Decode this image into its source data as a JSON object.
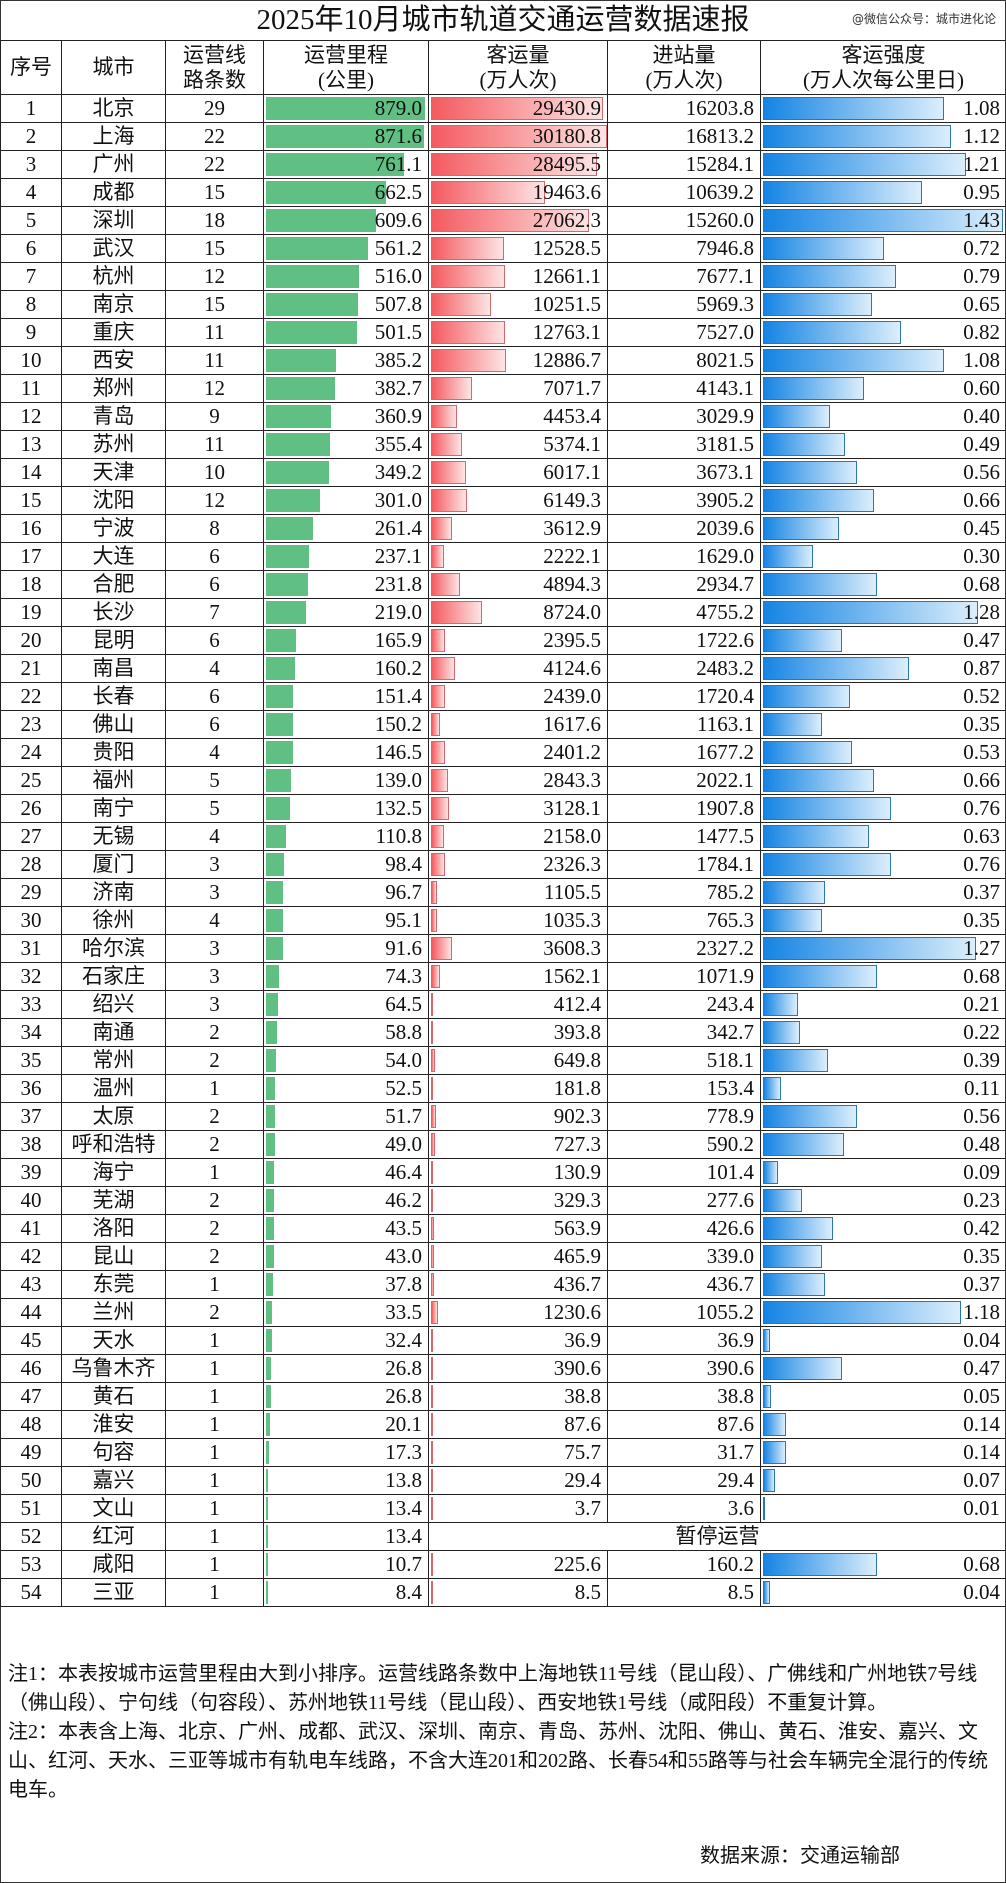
{
  "title": "2025年10月城市轨道交通运营数据速报",
  "watermark": "@微信公众号：城市进化论",
  "headers": [
    "序号",
    "城市",
    "运营线\n路条数",
    "运营里程\n(公里)",
    "客运量\n(万人次)",
    "进站量\n(万人次)",
    "客运强度\n(万人次每公里日)"
  ],
  "colors": {
    "mileage_bar": "#60bf82",
    "ridership_bar": "#f45a5f",
    "intensity_bar": "#1584e3"
  },
  "suspended_label": "暂停运营",
  "rows": [
    [
      "1",
      "北京",
      "29",
      "879.0",
      "29430.9",
      "16203.8",
      "1.08"
    ],
    [
      "2",
      "上海",
      "22",
      "871.6",
      "30180.8",
      "16813.2",
      "1.12"
    ],
    [
      "3",
      "广州",
      "22",
      "761.1",
      "28495.5",
      "15284.1",
      "1.21"
    ],
    [
      "4",
      "成都",
      "15",
      "662.5",
      "19463.6",
      "10639.2",
      "0.95"
    ],
    [
      "5",
      "深圳",
      "18",
      "609.6",
      "27062.3",
      "15260.0",
      "1.43"
    ],
    [
      "6",
      "武汉",
      "15",
      "561.2",
      "12528.5",
      "7946.8",
      "0.72"
    ],
    [
      "7",
      "杭州",
      "12",
      "516.0",
      "12661.1",
      "7677.1",
      "0.79"
    ],
    [
      "8",
      "南京",
      "15",
      "507.8",
      "10251.5",
      "5969.3",
      "0.65"
    ],
    [
      "9",
      "重庆",
      "11",
      "501.5",
      "12763.1",
      "7527.0",
      "0.82"
    ],
    [
      "10",
      "西安",
      "11",
      "385.2",
      "12886.7",
      "8021.5",
      "1.08"
    ],
    [
      "11",
      "郑州",
      "12",
      "382.7",
      "7071.7",
      "4143.1",
      "0.60"
    ],
    [
      "12",
      "青岛",
      "9",
      "360.9",
      "4453.4",
      "3029.9",
      "0.40"
    ],
    [
      "13",
      "苏州",
      "11",
      "355.4",
      "5374.1",
      "3181.5",
      "0.49"
    ],
    [
      "14",
      "天津",
      "10",
      "349.2",
      "6017.1",
      "3673.1",
      "0.56"
    ],
    [
      "15",
      "沈阳",
      "12",
      "301.0",
      "6149.3",
      "3905.2",
      "0.66"
    ],
    [
      "16",
      "宁波",
      "8",
      "261.4",
      "3612.9",
      "2039.6",
      "0.45"
    ],
    [
      "17",
      "大连",
      "6",
      "237.1",
      "2222.1",
      "1629.0",
      "0.30"
    ],
    [
      "18",
      "合肥",
      "6",
      "231.8",
      "4894.3",
      "2934.7",
      "0.68"
    ],
    [
      "19",
      "长沙",
      "7",
      "219.0",
      "8724.0",
      "4755.2",
      "1.28"
    ],
    [
      "20",
      "昆明",
      "6",
      "165.9",
      "2395.5",
      "1722.6",
      "0.47"
    ],
    [
      "21",
      "南昌",
      "4",
      "160.2",
      "4124.6",
      "2483.2",
      "0.87"
    ],
    [
      "22",
      "长春",
      "6",
      "151.4",
      "2439.0",
      "1720.4",
      "0.52"
    ],
    [
      "23",
      "佛山",
      "6",
      "150.2",
      "1617.6",
      "1163.1",
      "0.35"
    ],
    [
      "24",
      "贵阳",
      "4",
      "146.5",
      "2401.2",
      "1677.2",
      "0.53"
    ],
    [
      "25",
      "福州",
      "5",
      "139.0",
      "2843.3",
      "2022.1",
      "0.66"
    ],
    [
      "26",
      "南宁",
      "5",
      "132.5",
      "3128.1",
      "1907.8",
      "0.76"
    ],
    [
      "27",
      "无锡",
      "4",
      "110.8",
      "2158.0",
      "1477.5",
      "0.63"
    ],
    [
      "28",
      "厦门",
      "3",
      "98.4",
      "2326.3",
      "1784.1",
      "0.76"
    ],
    [
      "29",
      "济南",
      "3",
      "96.7",
      "1105.5",
      "785.2",
      "0.37"
    ],
    [
      "30",
      "徐州",
      "4",
      "95.1",
      "1035.3",
      "765.3",
      "0.35"
    ],
    [
      "31",
      "哈尔滨",
      "3",
      "91.6",
      "3608.3",
      "2327.2",
      "1.27"
    ],
    [
      "32",
      "石家庄",
      "3",
      "74.3",
      "1562.1",
      "1071.9",
      "0.68"
    ],
    [
      "33",
      "绍兴",
      "3",
      "64.5",
      "412.4",
      "243.4",
      "0.21"
    ],
    [
      "34",
      "南通",
      "2",
      "58.8",
      "393.8",
      "342.7",
      "0.22"
    ],
    [
      "35",
      "常州",
      "2",
      "54.0",
      "649.8",
      "518.1",
      "0.39"
    ],
    [
      "36",
      "温州",
      "1",
      "52.5",
      "181.8",
      "153.4",
      "0.11"
    ],
    [
      "37",
      "太原",
      "2",
      "51.7",
      "902.3",
      "778.9",
      "0.56"
    ],
    [
      "38",
      "呼和浩特",
      "2",
      "49.0",
      "727.3",
      "590.2",
      "0.48"
    ],
    [
      "39",
      "海宁",
      "1",
      "46.4",
      "130.9",
      "101.4",
      "0.09"
    ],
    [
      "40",
      "芜湖",
      "2",
      "46.2",
      "329.3",
      "277.6",
      "0.23"
    ],
    [
      "41",
      "洛阳",
      "2",
      "43.5",
      "563.9",
      "426.6",
      "0.42"
    ],
    [
      "42",
      "昆山",
      "2",
      "43.0",
      "465.9",
      "339.0",
      "0.35"
    ],
    [
      "43",
      "东莞",
      "1",
      "37.8",
      "436.7",
      "436.7",
      "0.37"
    ],
    [
      "44",
      "兰州",
      "2",
      "33.5",
      "1230.6",
      "1055.2",
      "1.18"
    ],
    [
      "45",
      "天水",
      "1",
      "32.4",
      "36.9",
      "36.9",
      "0.04"
    ],
    [
      "46",
      "乌鲁木齐",
      "1",
      "26.8",
      "390.6",
      "390.6",
      "0.47"
    ],
    [
      "47",
      "黄石",
      "1",
      "26.8",
      "38.8",
      "38.8",
      "0.05"
    ],
    [
      "48",
      "淮安",
      "1",
      "20.1",
      "87.6",
      "87.6",
      "0.14"
    ],
    [
      "49",
      "句容",
      "1",
      "17.3",
      "75.7",
      "31.7",
      "0.14"
    ],
    [
      "50",
      "嘉兴",
      "1",
      "13.8",
      "29.4",
      "29.4",
      "0.07"
    ],
    [
      "51",
      "文山",
      "1",
      "13.4",
      "3.7",
      "3.6",
      "0.01"
    ],
    [
      "52",
      "红河",
      "1",
      "13.4",
      null,
      null,
      null
    ],
    [
      "53",
      "咸阳",
      "1",
      "10.7",
      "225.6",
      "160.2",
      "0.68"
    ],
    [
      "54",
      "三亚",
      "1",
      "8.4",
      "8.5",
      "8.5",
      "0.04"
    ]
  ],
  "notes": {
    "note1": "注1：本表按城市运营里程由大到小排序。运营线路条数中上海地铁11号线（昆山段）、广佛线和广州地铁7号线（佛山段）、宁句线（句容段）、苏州地铁11号线（昆山段）、西安地铁1号线（咸阳段）不重复计算。",
    "note2": "注2：本表含上海、北京、广州、成都、武汉、深圳、南京、青岛、苏州、沈阳、佛山、黄石、淮安、嘉兴、文山、红河、天水、三亚等城市有轨电车线路，不含大连201和202路、长春54和55路等与社会车辆完全混行的传统电车。",
    "source": "数据来源：交通运输部"
  }
}
